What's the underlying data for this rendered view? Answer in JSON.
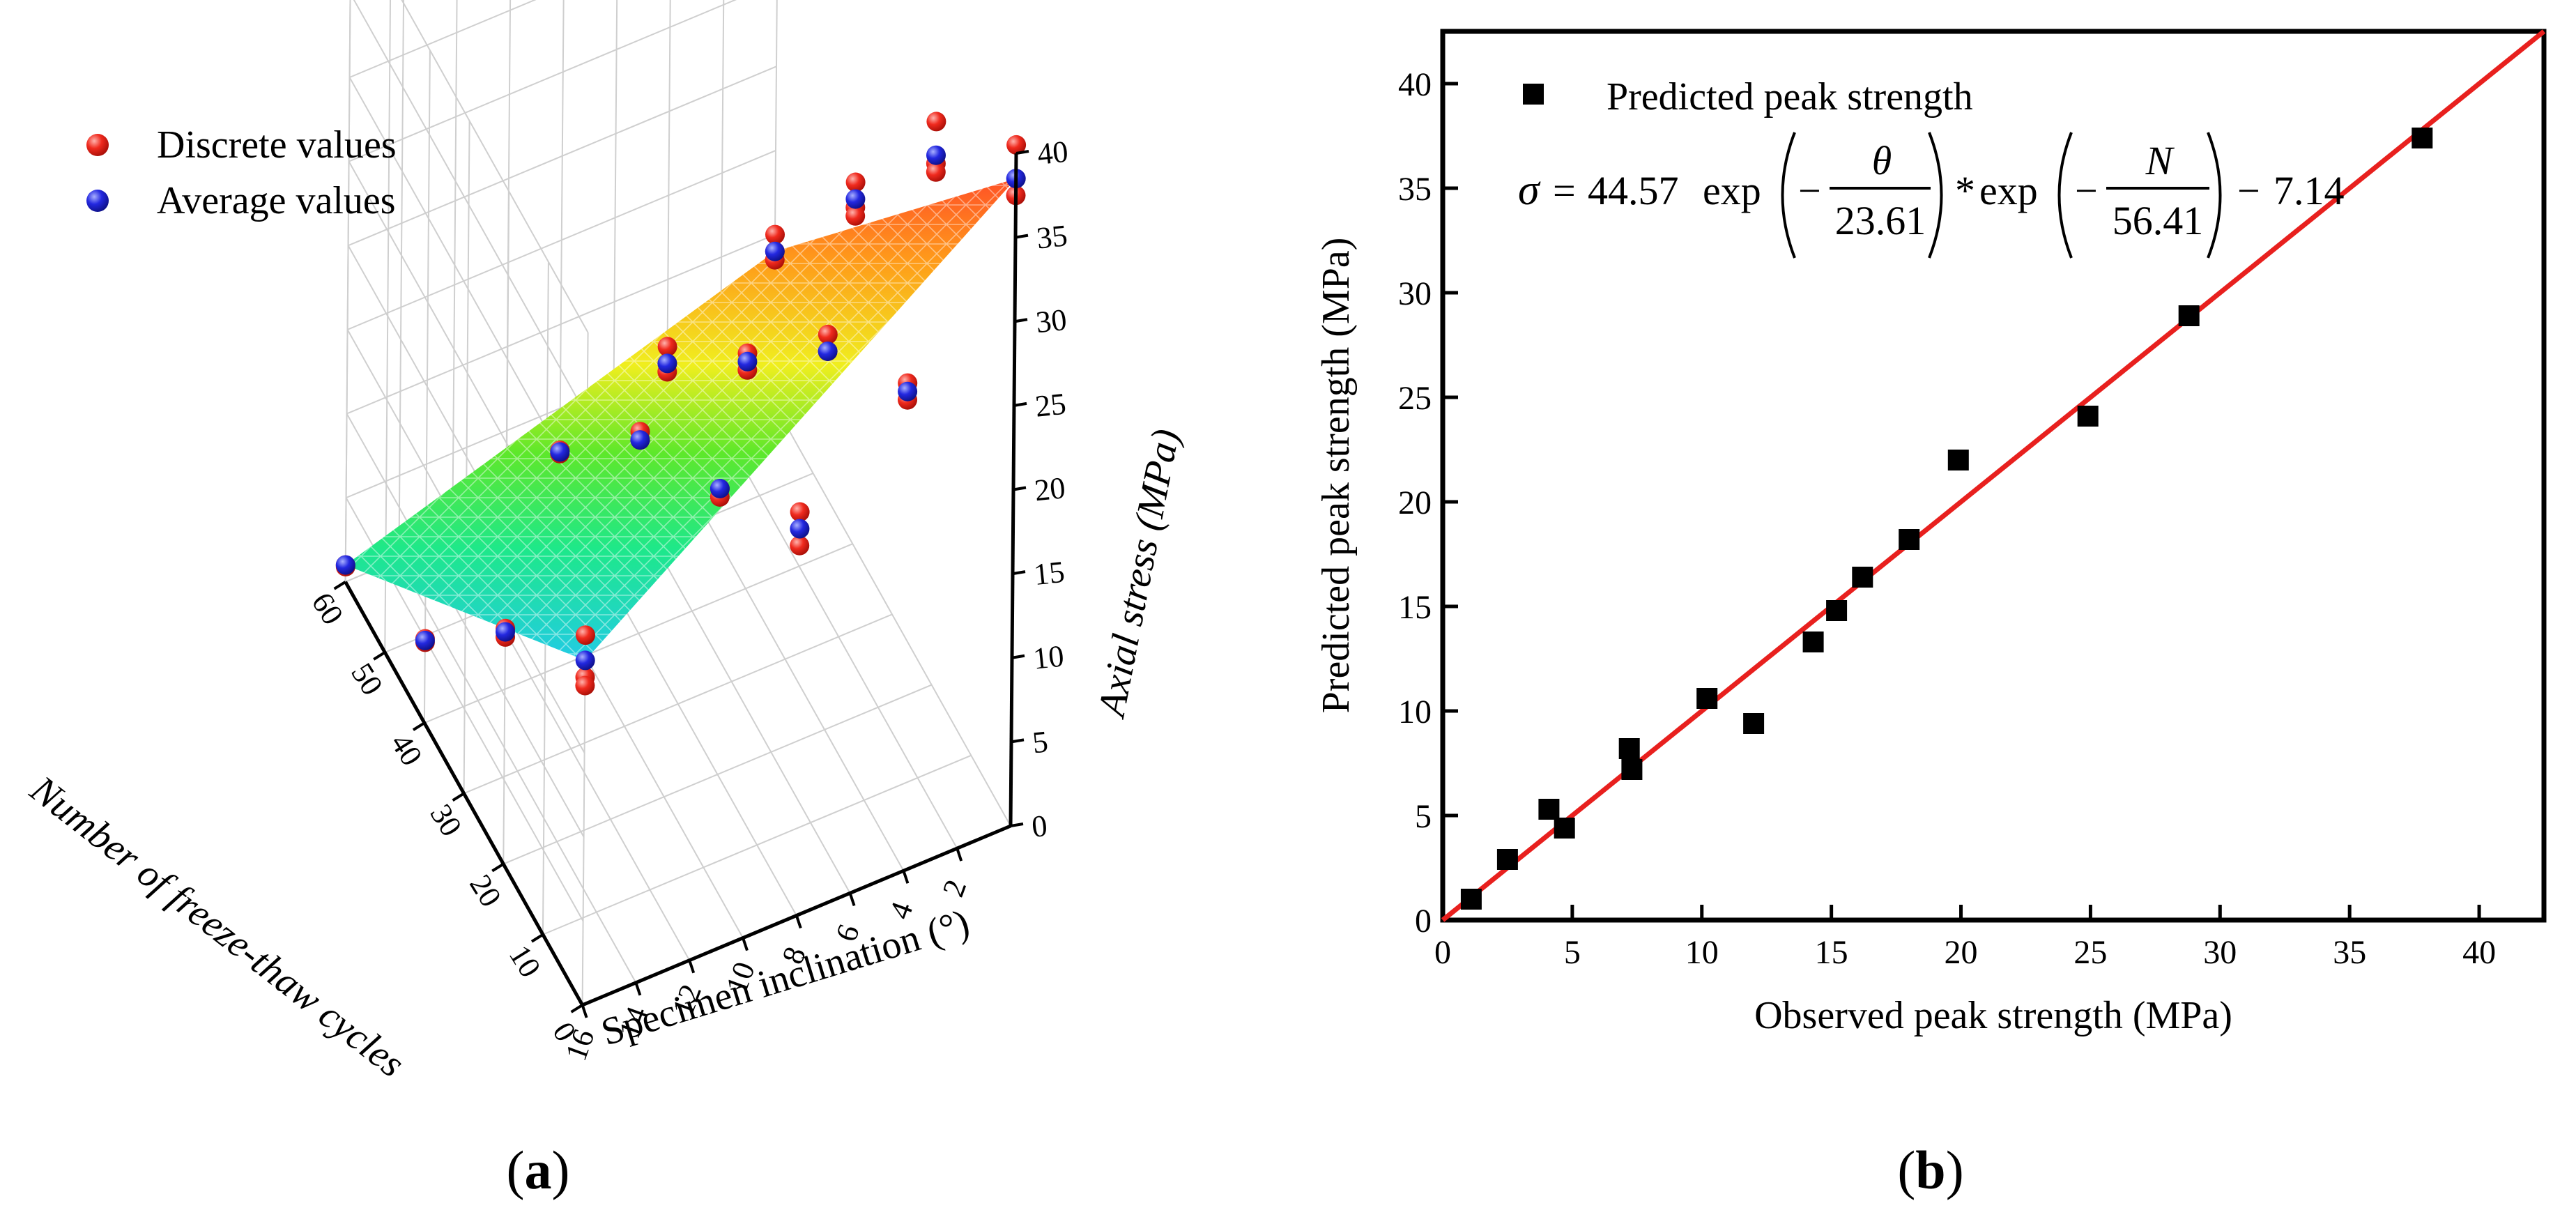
{
  "panel_a": {
    "caption_letter": "a",
    "legend": [
      {
        "label": "Discrete values",
        "color": "#e8201e"
      },
      {
        "label": "Average values",
        "color": "#1d22d8"
      }
    ],
    "z_axis_title": "Axial stress (MPa)",
    "x_axis_title": "Specimen inclination (°)",
    "y_axis_title": "Number of freeze-thaw cycles",
    "z_ticks": [
      "0",
      "5",
      "10",
      "15",
      "20",
      "25",
      "30",
      "35",
      "40"
    ],
    "x_ticks": [
      "16",
      "14",
      "12",
      "10",
      "8",
      "6",
      "4",
      "2"
    ],
    "y_ticks": [
      "0",
      "10",
      "20",
      "30",
      "40",
      "50",
      "60"
    ],
    "surface_colormap": [
      "#8a2be2",
      "#3a6ff0",
      "#17e8e8",
      "#22dd44",
      "#f0f020",
      "#ff9a1a",
      "#ff2a2a"
    ]
  },
  "panel_b": {
    "caption_letter": "b",
    "legend_label": "Predicted peak strength",
    "equation": {
      "lhs": "σ",
      "coef_a": "44.57",
      "fn": "exp",
      "num1": "θ",
      "den1": "23.61",
      "star": "*",
      "num2": "N",
      "den2": "56.41",
      "offset": "7.14"
    },
    "line_color": "#e8201e"
  },
  "chart_data": [
    {
      "type": "surface3d",
      "xlabel": "Specimen inclination (°)",
      "ylabel": "Number of freeze-thaw cycles",
      "zlabel": "Axial stress (MPa)",
      "xlim": [
        0,
        16
      ],
      "ylim": [
        0,
        60
      ],
      "zlim": [
        0,
        40
      ],
      "series": [
        {
          "name": "Discrete values",
          "points": [
            [
              0,
              0,
              40.5
            ],
            [
              0,
              0,
              37.5
            ],
            [
              0,
              20,
              33.5
            ],
            [
              0,
              20,
              31.0
            ],
            [
              0,
              20,
              30.5
            ],
            [
              0,
              40,
              21.5
            ],
            [
              0,
              40,
              20.0
            ],
            [
              0,
              40,
              19.5
            ],
            [
              0,
              60,
              10.0
            ],
            [
              0,
              60,
              9.0
            ],
            [
              0,
              60,
              8.5
            ],
            [
              4,
              0,
              29.0
            ],
            [
              4,
              0,
              28.0
            ],
            [
              4,
              20,
              23.5
            ],
            [
              4,
              20,
              22.5
            ],
            [
              4,
              40,
              14.0
            ],
            [
              4,
              40,
              13.0
            ],
            [
              4,
              60,
              6.0
            ],
            [
              4,
              60,
              5.0
            ],
            [
              4,
              60,
              4.5
            ],
            [
              8,
              0,
              24.0
            ],
            [
              8,
              0,
              22.0
            ],
            [
              8,
              20,
              17.0
            ],
            [
              8,
              20,
              16.5
            ],
            [
              8,
              40,
              12.0
            ],
            [
              8,
              40,
              11.5
            ],
            [
              8,
              60,
              2.5
            ],
            [
              8,
              60,
              2.3
            ],
            [
              16,
              0,
              22.0
            ],
            [
              16,
              0,
              19.5
            ],
            [
              16,
              0,
              19.0
            ],
            [
              16,
              20,
              14.0
            ],
            [
              16,
              20,
              13.5
            ],
            [
              16,
              40,
              5.0
            ],
            [
              16,
              40,
              4.8
            ],
            [
              16,
              60,
              1.0
            ],
            [
              16,
              60,
              0.9
            ]
          ]
        },
        {
          "name": "Average values",
          "points": [
            [
              0,
              0,
              38.5
            ],
            [
              0,
              20,
              31.5
            ],
            [
              0,
              40,
              20.5
            ],
            [
              0,
              60,
              9.0
            ],
            [
              4,
              0,
              28.5
            ],
            [
              4,
              20,
              22.5
            ],
            [
              4,
              40,
              13.5
            ],
            [
              4,
              60,
              5.0
            ],
            [
              8,
              0,
              23.0
            ],
            [
              8,
              20,
              17.0
            ],
            [
              8,
              40,
              11.5
            ],
            [
              8,
              60,
              2.4
            ],
            [
              16,
              0,
              20.5
            ],
            [
              16,
              20,
              13.8
            ],
            [
              16,
              40,
              4.9
            ],
            [
              16,
              60,
              1.0
            ]
          ]
        }
      ]
    },
    {
      "type": "scatter",
      "xlabel": "Observed peak strength (MPa)",
      "ylabel": "Predicted peak strength (MPa)",
      "xlim": [
        0,
        42.5
      ],
      "ylim": [
        0,
        42.5
      ],
      "xticks": [
        0,
        5,
        10,
        15,
        20,
        25,
        30,
        35,
        40
      ],
      "yticks": [
        0,
        5,
        10,
        15,
        20,
        25,
        30,
        35,
        40
      ],
      "series": [
        {
          "name": "Predicted peak strength",
          "x": [
            1.1,
            2.5,
            4.1,
            4.7,
            7.2,
            7.3,
            10.2,
            12.0,
            14.3,
            15.2,
            16.2,
            18.0,
            19.9,
            24.9,
            28.8,
            37.8
          ],
          "y": [
            1.0,
            2.9,
            5.3,
            4.4,
            8.2,
            7.2,
            10.6,
            9.4,
            13.3,
            14.8,
            16.4,
            18.2,
            22.0,
            24.1,
            28.9,
            37.4
          ]
        }
      ],
      "fit_line": {
        "x": [
          0,
          42.5
        ],
        "y": [
          0,
          42.5
        ]
      }
    }
  ]
}
